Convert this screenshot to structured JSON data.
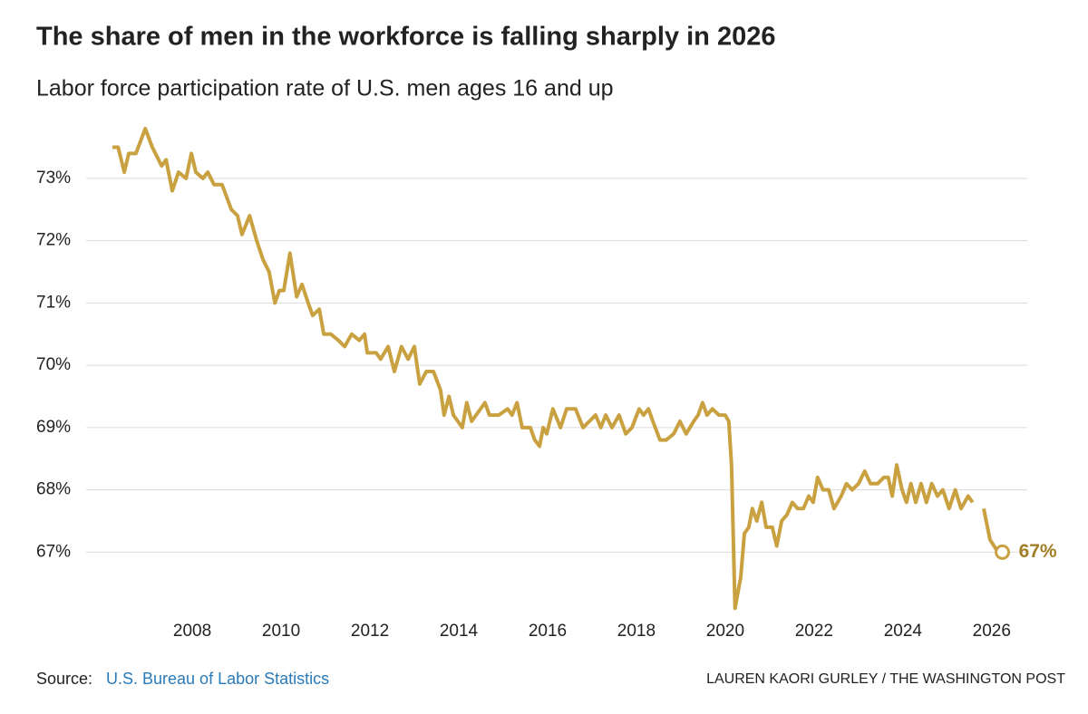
{
  "chart_data": {
    "type": "line",
    "title": "The share of men in the workforce is falling sharply in 2026",
    "subtitle": "Labor force participation rate of U.S. men ages 16 and up",
    "x": [
      2006.2,
      2006.33,
      2006.47,
      2006.57,
      2006.73,
      2006.94,
      2007.1,
      2007.31,
      2007.41,
      2007.55,
      2007.69,
      2007.86,
      2007.98,
      2008.08,
      2008.24,
      2008.35,
      2008.49,
      2008.67,
      2008.88,
      2009.02,
      2009.12,
      2009.29,
      2009.45,
      2009.59,
      2009.73,
      2009.86,
      2009.96,
      2010.06,
      2010.2,
      2010.35,
      2010.47,
      2010.61,
      2010.71,
      2010.86,
      2010.96,
      2011.12,
      2011.29,
      2011.43,
      2011.59,
      2011.76,
      2011.88,
      2011.94,
      2012.14,
      2012.24,
      2012.41,
      2012.55,
      2012.71,
      2012.86,
      2013.0,
      2013.12,
      2013.27,
      2013.43,
      2013.59,
      2013.67,
      2013.78,
      2013.88,
      2013.98,
      2014.08,
      2014.18,
      2014.29,
      2014.59,
      2014.69,
      2014.9,
      2015.1,
      2015.2,
      2015.31,
      2015.43,
      2015.61,
      2015.71,
      2015.82,
      2015.9,
      2015.98,
      2016.12,
      2016.29,
      2016.43,
      2016.63,
      2016.8,
      2016.94,
      2017.08,
      2017.2,
      2017.31,
      2017.45,
      2017.61,
      2017.76,
      2017.9,
      2018.06,
      2018.16,
      2018.27,
      2018.37,
      2018.53,
      2018.67,
      2018.84,
      2018.98,
      2019.12,
      2019.29,
      2019.39,
      2019.49,
      2019.59,
      2019.71,
      2019.86,
      2020.0,
      2020.08,
      2020.14,
      2020.22,
      2020.35,
      2020.43,
      2020.53,
      2020.61,
      2020.71,
      2020.82,
      2020.92,
      2021.06,
      2021.16,
      2021.27,
      2021.39,
      2021.51,
      2021.63,
      2021.76,
      2021.88,
      2021.98,
      2022.08,
      2022.2,
      2022.33,
      2022.45,
      2022.61,
      2022.73,
      2022.86,
      2023.0,
      2023.14,
      2023.27,
      2023.43,
      2023.57,
      2023.67,
      2023.76,
      2023.86,
      2023.98,
      2024.08,
      2024.18,
      2024.29,
      2024.41,
      2024.53,
      2024.65,
      2024.78,
      2024.9,
      2025.04,
      2025.18,
      2025.31,
      2025.47,
      2025.57,
      2025.7,
      2025.82,
      2025.96,
      2026.14,
      2026.24
    ],
    "series": [
      {
        "color": "#c9a140",
        "values": [
          73.5,
          73.5,
          73.1,
          73.4,
          73.4,
          73.8,
          73.5,
          73.2,
          73.3,
          72.8,
          73.1,
          73.0,
          73.4,
          73.1,
          73.0,
          73.1,
          72.9,
          72.9,
          72.5,
          72.4,
          72.1,
          72.4,
          72.0,
          71.7,
          71.5,
          71.0,
          71.2,
          71.2,
          71.8,
          71.1,
          71.3,
          71.0,
          70.8,
          70.9,
          70.5,
          70.5,
          70.4,
          70.3,
          70.5,
          70.4,
          70.5,
          70.2,
          70.2,
          70.1,
          70.3,
          69.9,
          70.3,
          70.1,
          70.3,
          69.7,
          69.9,
          69.9,
          69.6,
          69.2,
          69.5,
          69.2,
          69.1,
          69.0,
          69.4,
          69.1,
          69.4,
          69.2,
          69.2,
          69.3,
          69.2,
          69.4,
          69.0,
          69.0,
          68.8,
          68.7,
          69.0,
          68.9,
          69.3,
          69.0,
          69.3,
          69.3,
          69.0,
          69.1,
          69.2,
          69.0,
          69.2,
          69.0,
          69.2,
          68.9,
          69.0,
          69.3,
          69.2,
          69.3,
          69.1,
          68.8,
          68.8,
          68.9,
          69.1,
          68.9,
          69.1,
          69.2,
          69.4,
          69.2,
          69.3,
          69.2,
          69.2,
          69.1,
          68.4,
          66.1,
          66.6,
          67.3,
          67.4,
          67.7,
          67.5,
          67.8,
          67.4,
          67.4,
          67.1,
          67.5,
          67.6,
          67.8,
          67.7,
          67.7,
          67.9,
          67.8,
          68.2,
          68.0,
          68.0,
          67.7,
          67.9,
          68.1,
          68.0,
          68.1,
          68.3,
          68.1,
          68.1,
          68.2,
          68.2,
          67.9,
          68.4,
          68.0,
          67.8,
          68.1,
          67.8,
          68.1,
          67.8,
          68.1,
          67.9,
          68.0,
          67.7,
          68.0,
          67.7,
          67.9,
          67.8,
          null,
          67.7,
          67.2,
          67.0,
          67.0
        ]
      }
    ],
    "annotation": "67%",
    "annotation_color": "#a07e25",
    "xlim": [
      2005.61,
      2026.8
    ],
    "ylim": [
      65.9,
      73.9
    ],
    "xticks": [
      2008,
      2010,
      2012,
      2014,
      2016,
      2018,
      2020,
      2022,
      2024,
      2026
    ],
    "yticks": [
      {
        "value": 67,
        "label": "67%"
      },
      {
        "value": 68,
        "label": "68%"
      },
      {
        "value": 69,
        "label": "69%"
      },
      {
        "value": 70,
        "label": "70%"
      },
      {
        "value": 71,
        "label": "71%"
      },
      {
        "value": 72,
        "label": "72%"
      },
      {
        "value": 73,
        "label": "73%"
      }
    ],
    "grid": true,
    "source_label": "Source:",
    "source": "U.S. Bureau of Labor Statistics",
    "credit": "LAUREN KAORI GURLEY / THE WASHINGTON POST"
  }
}
